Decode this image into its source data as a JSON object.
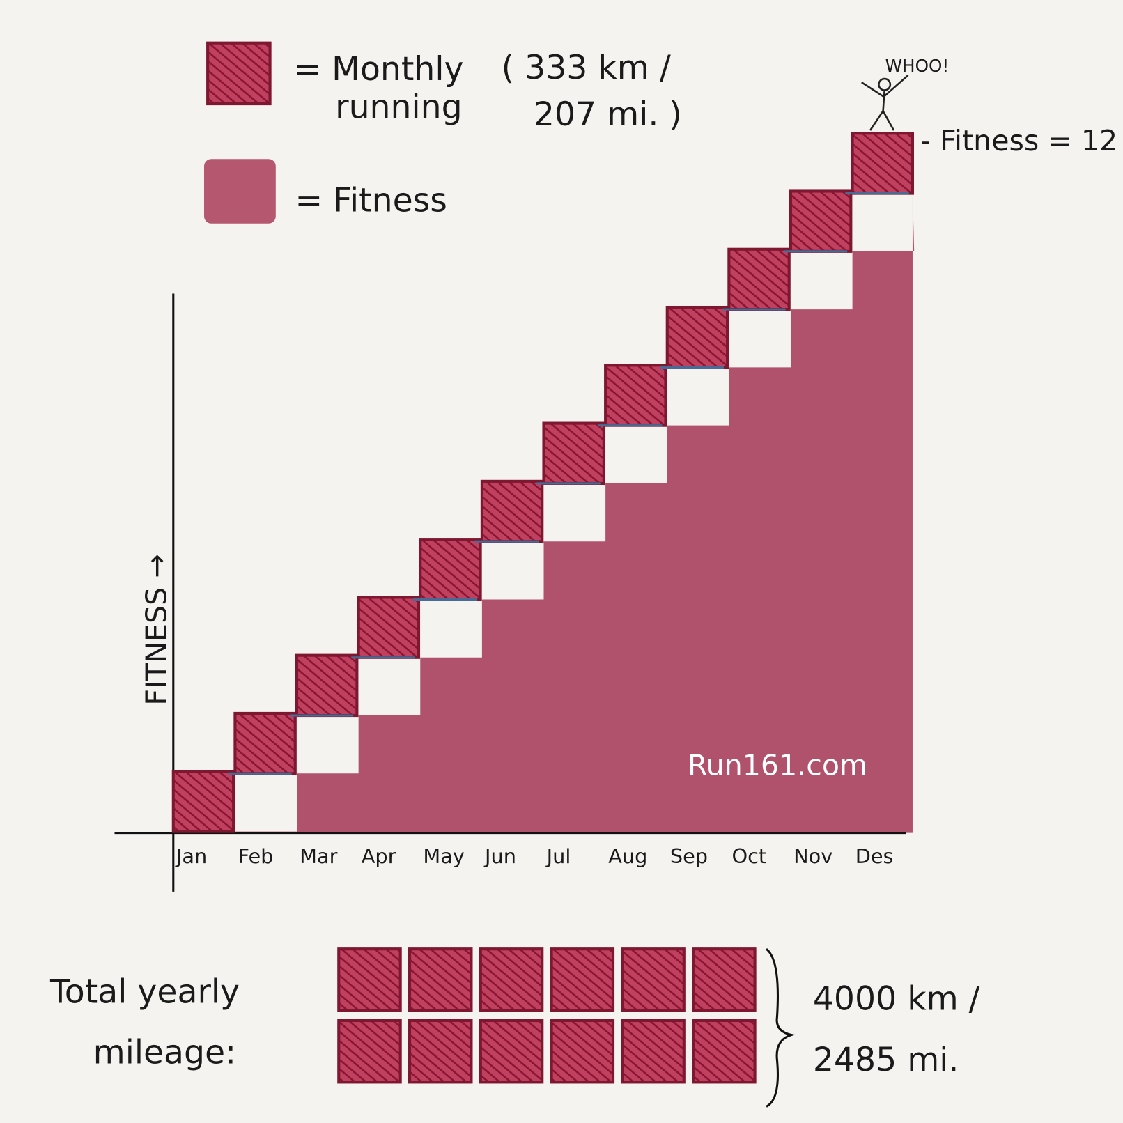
{
  "legend": {
    "running_lines": [
      "= Monthly",
      "running"
    ],
    "distance_lines": [
      "( 333 km /",
      "207 mi. )"
    ],
    "fitness": "= Fitness"
  },
  "chart": {
    "y_axis_label": "FITNESS →",
    "months": [
      "Jan",
      "Feb",
      "Mar",
      "Apr",
      "May",
      "Jun",
      "Jul",
      "Aug",
      "Sep",
      "Oct",
      "Nov",
      "Des"
    ],
    "cheer": "WHOO!",
    "peak_label": "- Fitness = 12",
    "watermark": "Run161.com"
  },
  "total": {
    "label_lines": [
      "Total yearly",
      "mileage:"
    ],
    "distance_lines": [
      "4000 km /",
      "2485 mi."
    ]
  }
}
